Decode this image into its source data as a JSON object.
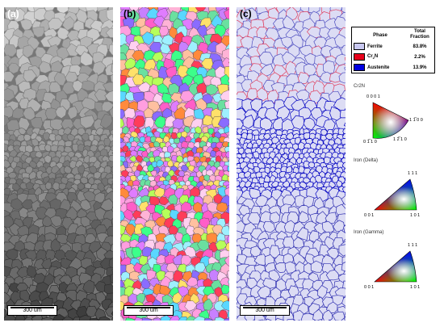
{
  "panels": {
    "a": {
      "label": "(a)",
      "scale_label": "300 um"
    },
    "b": {
      "label": "(b)",
      "scale_label": "300 um"
    },
    "c": {
      "label": "(c)",
      "scale_label": "300 um"
    }
  },
  "legend": {
    "header_phase": "Phase",
    "header_fraction": "Total Fraction",
    "rows": [
      {
        "name": "Ferrite",
        "fraction": "83.8%",
        "color": "#c8c8f0"
      },
      {
        "name": "Cr",
        "name_sub": "2",
        "name_tail": "N",
        "fraction": "2.2%",
        "color": "#e8001c"
      },
      {
        "name": "Austenite",
        "fraction": "13.9%",
        "color": "#0000e0"
      }
    ]
  },
  "ipf": [
    {
      "title": "Cr2N",
      "top": "0 0 0 1",
      "right": "1 1̅ 0 0",
      "bottom_left": "0 1̅ 1 0",
      "bottom_right": "1 2̅ 1 0"
    },
    {
      "title": "Iron (Delta)",
      "top": "1 1 1",
      "left": "0 0 1",
      "right": "1 0 1"
    },
    {
      "title": "Iron (Gamma)",
      "top": "1 1 1",
      "left": "0 0 1",
      "right": "1 0 1"
    }
  ]
}
